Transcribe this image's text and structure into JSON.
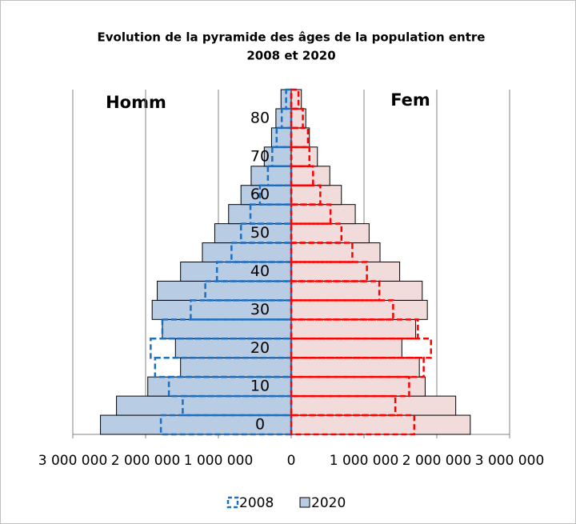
{
  "chart_data": {
    "type": "pyramid",
    "title": [
      "Evolution de la pyramide des âges de la population entre",
      "2008 et 2020"
    ],
    "annotations": [
      "Homm",
      "Fem"
    ],
    "categories": [
      "0",
      null,
      "10",
      null,
      "20",
      null,
      "30",
      null,
      "40",
      null,
      "50",
      null,
      "60",
      null,
      "70",
      null,
      "80",
      null
    ],
    "series": [
      {
        "name": "2008",
        "dashed": true,
        "colors": [
          "#1f6fbf",
          "#ff0000"
        ],
        "men": [
          -1790000,
          -1490000,
          -1680000,
          -1870000,
          -1930000,
          -1770000,
          -1380000,
          -1180000,
          -1020000,
          -820000,
          -690000,
          -560000,
          -430000,
          -320000,
          -260000,
          -200000,
          -130000,
          -70000
        ],
        "women": [
          1690000,
          1430000,
          1620000,
          1820000,
          1920000,
          1740000,
          1400000,
          1210000,
          1040000,
          840000,
          690000,
          540000,
          400000,
          300000,
          250000,
          230000,
          160000,
          100000
        ]
      },
      {
        "name": "2020",
        "dashed": false,
        "colors": [
          "#b8cce4",
          "#f2dcdb"
        ],
        "men": [
          -2620000,
          -2400000,
          -1970000,
          -1520000,
          -1590000,
          -1770000,
          -1910000,
          -1840000,
          -1520000,
          -1220000,
          -1050000,
          -860000,
          -690000,
          -550000,
          -370000,
          -270000,
          -210000,
          -140000
        ],
        "women": [
          2460000,
          2260000,
          1840000,
          1760000,
          1520000,
          1710000,
          1870000,
          1800000,
          1490000,
          1220000,
          1070000,
          880000,
          690000,
          530000,
          360000,
          250000,
          200000,
          140000
        ]
      }
    ],
    "xlim": [
      -3000000,
      3000000
    ],
    "xticks": [
      {
        "value": -3000000,
        "label": "3 000 000"
      },
      {
        "value": -2000000,
        "label": "2 000 000"
      },
      {
        "value": -1000000,
        "label": "1 000 000"
      },
      0,
      {
        "value": 1000000,
        "label": "1 000 000"
      },
      {
        "value": 2000000,
        "label": "2 000 000"
      },
      {
        "value": 3000000,
        "label": "3 000 000"
      }
    ],
    "grid": true,
    "legend": "bottom"
  }
}
